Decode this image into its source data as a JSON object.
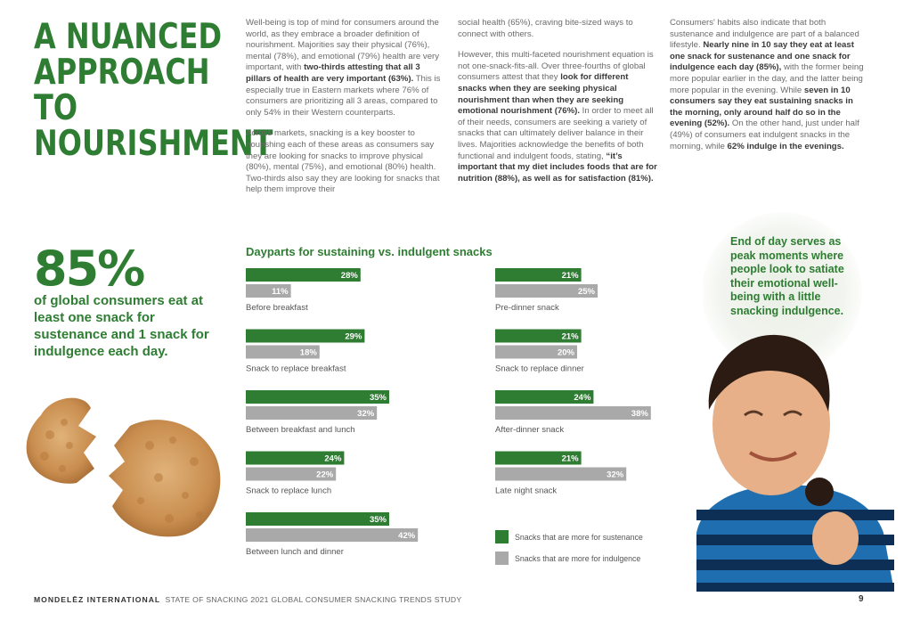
{
  "title": "A NUANCED APPROACH TO NOURISHMENT",
  "column1": {
    "p1": [
      {
        "t": "Well-being is top of mind for consumers around the world, as they embrace a broader definition of nourishment. Majorities say their physical (76%), mental (78%), and emotional (79%) health are very important, with ",
        "b": false
      },
      {
        "t": "two-thirds attesting that all 3 pillars of health are very important (63%).",
        "b": true
      },
      {
        "t": " This is especially true in Eastern markets where 76% of consumers are prioritizing all 3 areas, compared to only 54% in their Western counterparts.",
        "b": false
      }
    ],
    "p2": "Across markets, snacking is a key booster to nourishing each of these areas as consumers say they are looking for snacks to improve physical (80%), mental (75%), and emotional (80%) health. Two-thirds also say they are looking for snacks that help them improve their"
  },
  "column2": {
    "p1": "social health (65%), craving bite-sized ways to connect with others.",
    "p2": [
      {
        "t": "However, this multi-faceted nourishment equation is not one-snack-fits-all. Over three-fourths of global consumers attest that they ",
        "b": false
      },
      {
        "t": "look for different snacks when they are seeking physical nourishment than when they are seeking emotional nourishment (76%).",
        "b": true
      },
      {
        "t": " In order to meet all of their needs, consumers are seeking a variety of snacks that can ultimately deliver balance in their lives. Majorities acknowledge the benefits of both functional and indulgent foods, stating, ",
        "b": false
      },
      {
        "t": "“it’s important that my diet includes foods that are for nutrition (88%), as well as for satisfaction (81%).",
        "b": true
      }
    ]
  },
  "column3": {
    "p1": [
      {
        "t": "Consumers' habits also indicate that both sustenance and indulgence are part of a balanced lifestyle. ",
        "b": false
      },
      {
        "t": "Nearly nine in 10 say they eat at least one snack for sustenance and one snack for indulgence each day (85%),",
        "b": true
      },
      {
        "t": " with the former being more popular earlier in the day, and the latter being more popular in the evening. While ",
        "b": false
      },
      {
        "t": "seven in 10 consumers say they eat sustaining snacks in the morning, only around half do so in the evening (52%).",
        "b": true
      },
      {
        "t": " On the other hand, just under half (49%) of consumers eat indulgent snacks in the morning, while ",
        "b": false
      },
      {
        "t": "62% indulge in the evenings.",
        "b": true
      }
    ]
  },
  "stat": {
    "value": "85%",
    "text": "of global consumers eat at least one snack for sustenance and 1 snack for indulgence each day."
  },
  "bubble_text": "End of day serves as peak moments where people look to satiate their emotional well-being with a little snacking indulgence.",
  "footer": {
    "brand": "MONDELĒZ INTERNATIONAL",
    "study": "STATE OF SNACKING 2021 GLOBAL CONSUMER SNACKING TRENDS STUDY",
    "page": "9"
  },
  "colors": {
    "green": "#2e7d32",
    "gray": "#a9a9a9"
  },
  "chart_data": {
    "type": "bar",
    "orientation": "horizontal",
    "title": "Dayparts for sustaining vs. indulgent snacks",
    "unit": "%",
    "categories": [
      "Before breakfast",
      "Snack to replace breakfast",
      "Between breakfast and lunch",
      "Snack to replace lunch",
      "Between lunch and dinner",
      "Pre-dinner snack",
      "Snack to replace dinner",
      "After-dinner snack",
      "Late night snack"
    ],
    "series": [
      {
        "name": "Snacks that are more for sustenance",
        "color": "#2e7d32",
        "values": [
          28,
          29,
          35,
          24,
          35,
          21,
          21,
          24,
          21
        ]
      },
      {
        "name": "Snacks that are more for indulgence",
        "color": "#a9a9a9",
        "values": [
          11,
          18,
          32,
          22,
          42,
          25,
          20,
          38,
          32
        ]
      }
    ],
    "legend_position": "bottom-right",
    "grid": false
  }
}
